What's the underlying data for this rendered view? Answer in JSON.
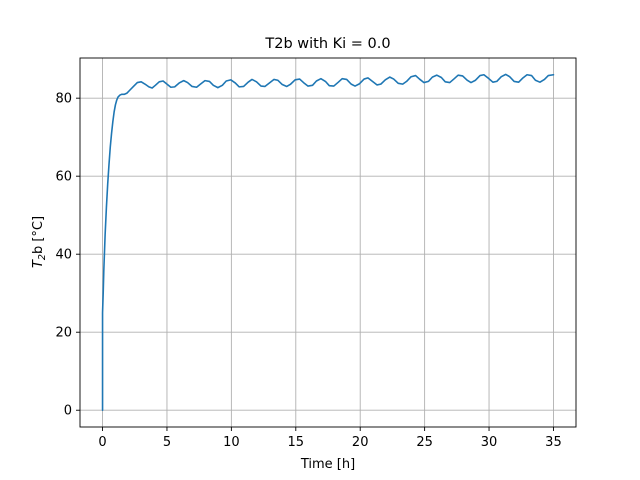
{
  "chart_data": {
    "type": "line",
    "title": "T2b with Ki = 0.0",
    "xlabel": "Time [h]",
    "ylabel_main": "T",
    "ylabel_sub": "2",
    "ylabel_rest": "b [°C]",
    "xlim": [
      -1.75,
      36.75
    ],
    "ylim": [
      -4.3,
      90.3
    ],
    "xticks": [
      0,
      5,
      10,
      15,
      20,
      25,
      30,
      35
    ],
    "yticks": [
      0,
      20,
      40,
      60,
      80
    ],
    "grid": true,
    "series": [
      {
        "color": "#1f77b4",
        "x": [
          0,
          0,
          0.05,
          0.1,
          0.2,
          0.3,
          0.4,
          0.5,
          0.6,
          0.7,
          0.8,
          0.9,
          1.0,
          1.1,
          1.2,
          1.35,
          1.5,
          1.7,
          1.9,
          2.1,
          2.4,
          2.7,
          3.0,
          3.3,
          3.6,
          3.85,
          4.1,
          4.4,
          4.7,
          5.0,
          5.3,
          5.6,
          5.95,
          6.3,
          6.6,
          6.95,
          7.3,
          7.6,
          7.95,
          8.3,
          8.6,
          8.95,
          9.3,
          9.6,
          9.95,
          10.3,
          10.6,
          10.95,
          11.3,
          11.6,
          11.95,
          12.3,
          12.6,
          12.95,
          13.3,
          13.6,
          13.95,
          14.3,
          14.6,
          14.95,
          15.3,
          15.6,
          15.95,
          16.3,
          16.6,
          16.95,
          17.3,
          17.6,
          17.95,
          18.3,
          18.6,
          18.95,
          19.3,
          19.6,
          19.95,
          20.3,
          20.6,
          20.95,
          21.3,
          21.6,
          21.95,
          22.3,
          22.6,
          22.95,
          23.3,
          23.6,
          23.95,
          24.3,
          24.6,
          24.95,
          25.3,
          25.6,
          25.95,
          26.3,
          26.6,
          26.95,
          27.3,
          27.6,
          27.95,
          28.3,
          28.6,
          28.95,
          29.3,
          29.6,
          29.95,
          30.3,
          30.6,
          30.95,
          31.3,
          31.6,
          31.95,
          32.3,
          32.6,
          32.95,
          33.3,
          33.6,
          33.95,
          34.3,
          34.6,
          35.0
        ],
        "y": [
          0,
          25,
          30,
          36,
          45,
          52,
          58,
          63,
          67.5,
          71,
          74,
          76.5,
          78.3,
          79.5,
          80.3,
          80.8,
          81.0,
          81.0,
          81.3,
          82.0,
          83.0,
          84.0,
          84.2,
          83.6,
          82.9,
          82.6,
          83.3,
          84.2,
          84.4,
          83.6,
          82.8,
          82.9,
          83.9,
          84.5,
          84.0,
          83.0,
          82.8,
          83.6,
          84.5,
          84.3,
          83.3,
          82.7,
          83.3,
          84.4,
          84.7,
          83.9,
          82.9,
          83.0,
          84.1,
          84.8,
          84.2,
          83.1,
          83.0,
          83.9,
          84.8,
          84.6,
          83.5,
          83.0,
          83.6,
          84.7,
          84.9,
          84.0,
          83.1,
          83.3,
          84.4,
          85.0,
          84.3,
          83.2,
          83.1,
          84.1,
          85.0,
          84.8,
          83.6,
          83.1,
          83.7,
          84.9,
          85.2,
          84.3,
          83.4,
          83.6,
          84.7,
          85.4,
          84.9,
          83.8,
          83.6,
          84.3,
          85.5,
          85.8,
          84.9,
          84.0,
          84.3,
          85.4,
          85.9,
          85.3,
          84.2,
          84.0,
          85.0,
          85.9,
          85.7,
          84.6,
          84.0,
          84.6,
          85.8,
          86.0,
          85.1,
          84.1,
          84.3,
          85.5,
          86.1,
          85.5,
          84.3,
          84.1,
          85.1,
          86.0,
          85.8,
          84.6,
          84.1,
          84.8,
          85.8,
          86.0
        ]
      }
    ]
  }
}
